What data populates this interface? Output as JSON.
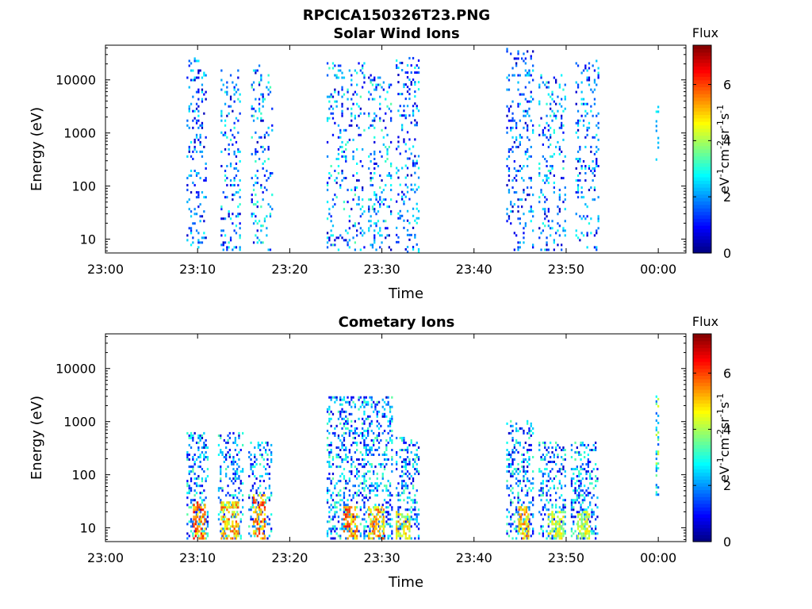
{
  "figure": {
    "title": "RPCICA150326T23.PNG"
  },
  "colorbar": {
    "label_title": "Flux",
    "unit_parts": [
      "eV",
      "-1",
      "cm",
      "-2",
      "sr",
      "-1",
      "s",
      "-1"
    ],
    "ticks": [
      "0",
      "2",
      "4",
      "6"
    ],
    "range": [
      0,
      7.4
    ],
    "colormap": "jet"
  },
  "chart_data": [
    {
      "type": "heatmap",
      "title": "Solar Wind Ions",
      "xlabel": "Time",
      "ylabel": "Energy (eV)",
      "x_ticks": [
        "23:00",
        "23:10",
        "23:20",
        "23:30",
        "23:40",
        "23:50",
        "00:00"
      ],
      "x_range_minutes": [
        0,
        63
      ],
      "y_scale": "log",
      "y_ticks": [
        10,
        100,
        1000,
        10000
      ],
      "y_tick_labels": [
        "10",
        "100",
        "1000",
        "10000"
      ],
      "y_range": [
        5.5,
        45000
      ],
      "seed": 7,
      "clusters": [
        {
          "t0": 8.8,
          "t1": 10.8,
          "emin": 6,
          "emax": 25000,
          "fmin": 0.4,
          "fmax": 2.8
        },
        {
          "t0": 12.5,
          "t1": 14.5,
          "emin": 6,
          "emax": 16000,
          "fmin": 0.4,
          "fmax": 3.2
        },
        {
          "t0": 15.8,
          "t1": 18.0,
          "emin": 6,
          "emax": 18000,
          "fmin": 0.4,
          "fmax": 3.4
        },
        {
          "t0": 24.0,
          "t1": 28.0,
          "emin": 6,
          "emax": 20000,
          "fmin": 0.4,
          "fmax": 3.4
        },
        {
          "t0": 28.5,
          "t1": 31.0,
          "emin": 6,
          "emax": 12000,
          "fmin": 0.4,
          "fmax": 3.4
        },
        {
          "t0": 31.5,
          "t1": 34.0,
          "emin": 5.5,
          "emax": 25000,
          "fmin": 0.4,
          "fmax": 3.0
        },
        {
          "t0": 43.5,
          "t1": 46.5,
          "emin": 6,
          "emax": 40000,
          "fmin": 0.4,
          "fmax": 2.8
        },
        {
          "t0": 47.0,
          "t1": 50.0,
          "emin": 6,
          "emax": 12000,
          "fmin": 0.4,
          "fmax": 3.2
        },
        {
          "t0": 51.0,
          "t1": 53.5,
          "emin": 6,
          "emax": 22000,
          "fmin": 0.4,
          "fmax": 3.0
        },
        {
          "t0": 59.7,
          "t1": 60.1,
          "emin": 300,
          "emax": 3000,
          "fmin": 2.0,
          "fmax": 3.2
        }
      ],
      "hot_bands": []
    },
    {
      "type": "heatmap",
      "title": "Cometary Ions",
      "xlabel": "Time",
      "ylabel": "Energy (eV)",
      "x_ticks": [
        "23:00",
        "23:10",
        "23:20",
        "23:30",
        "23:40",
        "23:50",
        "00:00"
      ],
      "x_range_minutes": [
        0,
        63
      ],
      "y_scale": "log",
      "y_ticks": [
        10,
        100,
        1000,
        10000
      ],
      "y_tick_labels": [
        "10",
        "100",
        "1000",
        "10000"
      ],
      "y_range": [
        5.5,
        45000
      ],
      "seed": 13,
      "clusters": [
        {
          "t0": 8.8,
          "t1": 11.0,
          "emin": 6,
          "emax": 600,
          "fmin": 0.5,
          "fmax": 3.5
        },
        {
          "t0": 12.2,
          "t1": 14.8,
          "emin": 6,
          "emax": 600,
          "fmin": 0.5,
          "fmax": 3.5
        },
        {
          "t0": 15.5,
          "t1": 18.0,
          "emin": 6,
          "emax": 400,
          "fmin": 0.5,
          "fmax": 3.5
        },
        {
          "t0": 24.0,
          "t1": 28.0,
          "emin": 6,
          "emax": 3000,
          "fmin": 0.5,
          "fmax": 3.5
        },
        {
          "t0": 28.0,
          "t1": 31.0,
          "emin": 6,
          "emax": 3000,
          "fmin": 0.5,
          "fmax": 3.5
        },
        {
          "t0": 31.5,
          "t1": 34.0,
          "emin": 6,
          "emax": 500,
          "fmin": 0.5,
          "fmax": 3.5
        },
        {
          "t0": 43.5,
          "t1": 46.5,
          "emin": 6,
          "emax": 1000,
          "fmin": 0.5,
          "fmax": 3.5
        },
        {
          "t0": 47.0,
          "t1": 50.0,
          "emin": 6,
          "emax": 400,
          "fmin": 0.5,
          "fmax": 3.5
        },
        {
          "t0": 50.5,
          "t1": 53.5,
          "emin": 6,
          "emax": 400,
          "fmin": 0.5,
          "fmax": 3.5
        },
        {
          "t0": 59.7,
          "t1": 60.1,
          "emin": 40,
          "emax": 3000,
          "fmin": 1.5,
          "fmax": 4.5
        }
      ],
      "hot_bands": [
        {
          "t0": 9.5,
          "t1": 10.8,
          "emin": 6,
          "emax": 30,
          "fmin": 4.5,
          "fmax": 6.5
        },
        {
          "t0": 12.5,
          "t1": 14.3,
          "emin": 6,
          "emax": 30,
          "fmin": 4.0,
          "fmax": 6.0
        },
        {
          "t0": 16.0,
          "t1": 17.2,
          "emin": 6,
          "emax": 40,
          "fmin": 4.5,
          "fmax": 6.5
        },
        {
          "t0": 25.8,
          "t1": 27.2,
          "emin": 6,
          "emax": 25,
          "fmin": 4.5,
          "fmax": 6.5
        },
        {
          "t0": 28.5,
          "t1": 30.2,
          "emin": 6,
          "emax": 25,
          "fmin": 4.0,
          "fmax": 6.0
        },
        {
          "t0": 31.5,
          "t1": 33.0,
          "emin": 6,
          "emax": 20,
          "fmin": 3.5,
          "fmax": 5.5
        },
        {
          "t0": 44.8,
          "t1": 46.0,
          "emin": 6,
          "emax": 25,
          "fmin": 4.0,
          "fmax": 5.8
        },
        {
          "t0": 48.0,
          "t1": 49.8,
          "emin": 6,
          "emax": 20,
          "fmin": 3.5,
          "fmax": 5.0
        },
        {
          "t0": 51.2,
          "t1": 52.6,
          "emin": 6,
          "emax": 20,
          "fmin": 3.5,
          "fmax": 5.0
        }
      ]
    }
  ]
}
